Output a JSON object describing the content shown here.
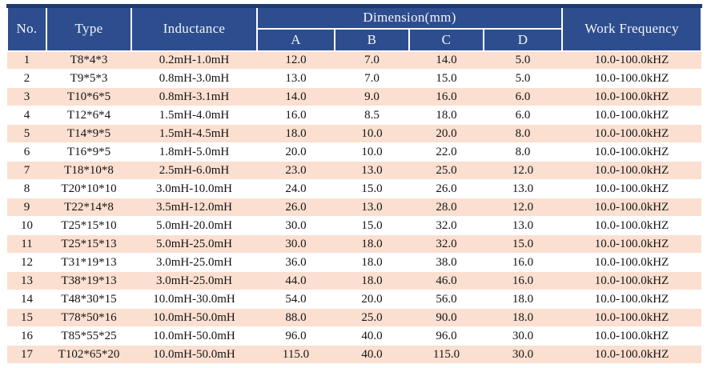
{
  "colors": {
    "header_bg": "#2e4d8e",
    "header_text": "#f2f5fa",
    "row_stripe_bg": "#fbdfd0",
    "row_plain_bg": "#ffffff",
    "top_border": "#1e3a6e",
    "body_text": "#141414"
  },
  "table": {
    "headers": {
      "no": "No.",
      "type": "Type",
      "inductance": "Inductance",
      "dimension_group": "Dimension(mm)",
      "dim_cols": [
        "A",
        "B",
        "C",
        "D"
      ],
      "work_frequency": "Work Frequency"
    },
    "rows": [
      {
        "no": "1",
        "type": "T8*4*3",
        "inductance": "0.2mH-1.0mH",
        "a": "12.0",
        "b": "7.0",
        "c": "14.0",
        "d": "5.0",
        "freq": "10.0-100.0kHZ"
      },
      {
        "no": "2",
        "type": "T9*5*3",
        "inductance": "0.8mH-3.0mH",
        "a": "13.0",
        "b": "7.0",
        "c": "15.0",
        "d": "5.0",
        "freq": "10.0-100.0kHZ"
      },
      {
        "no": "3",
        "type": "T10*6*5",
        "inductance": "0.8mH-3.1mH",
        "a": "14.0",
        "b": "9.0",
        "c": "16.0",
        "d": "6.0",
        "freq": "10.0-100.0kHZ"
      },
      {
        "no": "4",
        "type": "T12*6*4",
        "inductance": "1.5mH-4.0mH",
        "a": "16.0",
        "b": "8.5",
        "c": "18.0",
        "d": "6.0",
        "freq": "10.0-100.0kHZ"
      },
      {
        "no": "5",
        "type": "T14*9*5",
        "inductance": "1.5mH-4.5mH",
        "a": "18.0",
        "b": "10.0",
        "c": "20.0",
        "d": "8.0",
        "freq": "10.0-100.0kHZ"
      },
      {
        "no": "6",
        "type": "T16*9*5",
        "inductance": "1.8mH-5.0mH",
        "a": "20.0",
        "b": "10.0",
        "c": "22.0",
        "d": "8.0",
        "freq": "10.0-100.0kHZ"
      },
      {
        "no": "7",
        "type": "T18*10*8",
        "inductance": "2.5mH-6.0mH",
        "a": "23.0",
        "b": "13.0",
        "c": "25.0",
        "d": "12.0",
        "freq": "10.0-100.0kHZ"
      },
      {
        "no": "8",
        "type": "T20*10*10",
        "inductance": "3.0mH-10.0mH",
        "a": "24.0",
        "b": "15.0",
        "c": "26.0",
        "d": "13.0",
        "freq": "10.0-100.0kHZ"
      },
      {
        "no": "9",
        "type": "T22*14*8",
        "inductance": "3.5mH-12.0mH",
        "a": "26.0",
        "b": "13.0",
        "c": "28.0",
        "d": "12.0",
        "freq": "10.0-100.0kHZ"
      },
      {
        "no": "10",
        "type": "T25*15*10",
        "inductance": "5.0mH-20.0mH",
        "a": "30.0",
        "b": "15.0",
        "c": "32.0",
        "d": "13.0",
        "freq": "10.0-100.0kHZ"
      },
      {
        "no": "11",
        "type": "T25*15*13",
        "inductance": "5.0mH-25.0mH",
        "a": "30.0",
        "b": "18.0",
        "c": "32.0",
        "d": "15.0",
        "freq": "10.0-100.0kHZ"
      },
      {
        "no": "12",
        "type": "T31*19*13",
        "inductance": "3.0mH-25.0mH",
        "a": "36.0",
        "b": "18.0",
        "c": "38.0",
        "d": "16.0",
        "freq": "10.0-100.0kHZ"
      },
      {
        "no": "13",
        "type": "T38*19*13",
        "inductance": "3.0mH-25.0mH",
        "a": "44.0",
        "b": "18.0",
        "c": "46.0",
        "d": "16.0",
        "freq": "10.0-100.0kHZ"
      },
      {
        "no": "14",
        "type": "T48*30*15",
        "inductance": "10.0mH-30.0mH",
        "a": "54.0",
        "b": "20.0",
        "c": "56.0",
        "d": "18.0",
        "freq": "10.0-100.0kHZ"
      },
      {
        "no": "15",
        "type": "T78*50*16",
        "inductance": "10.0mH-50.0mH",
        "a": "88.0",
        "b": "25.0",
        "c": "90.0",
        "d": "18.0",
        "freq": "10.0-100.0kHZ"
      },
      {
        "no": "16",
        "type": "T85*55*25",
        "inductance": "10.0mH-50.0mH",
        "a": "96.0",
        "b": "40.0",
        "c": "96.0",
        "d": "30.0",
        "freq": "10.0-100.0kHZ"
      },
      {
        "no": "17",
        "type": "T102*65*20",
        "inductance": "10.0mH-50.0mH",
        "a": "115.0",
        "b": "40.0",
        "c": "115.0",
        "d": "30.0",
        "freq": "10.0-100.0kHZ"
      }
    ]
  }
}
